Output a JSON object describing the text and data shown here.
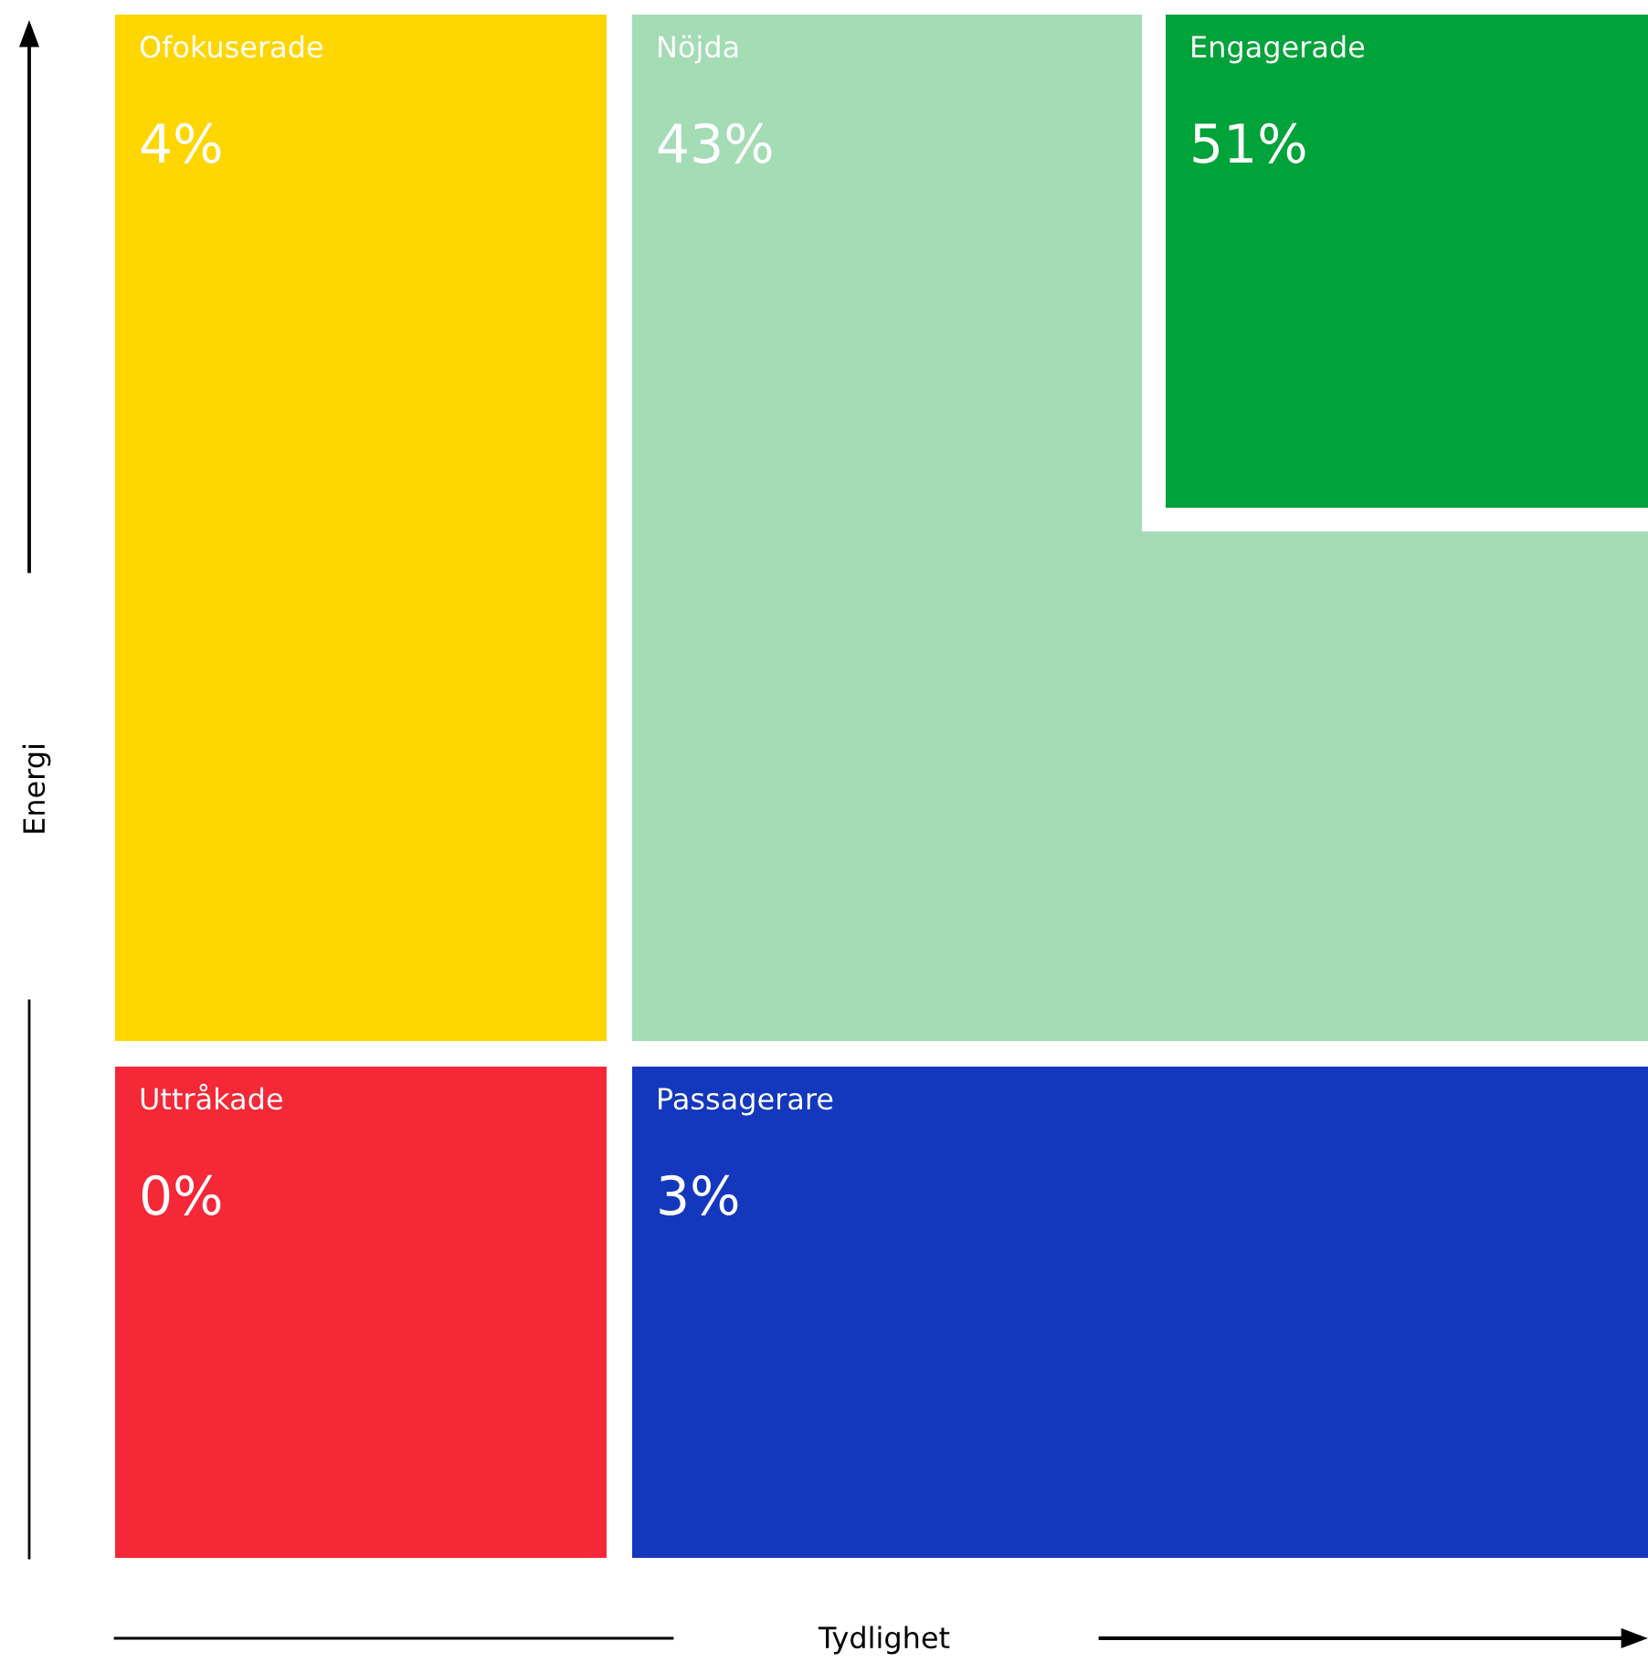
{
  "chart_data": {
    "type": "other",
    "xlabel": "Tydlighet",
    "ylabel": "Energi",
    "categories": [
      "Ofokuserade",
      "Nöjda",
      "Engagerade",
      "Uttråkade",
      "Passagerare"
    ],
    "values": [
      4,
      43,
      51,
      0,
      3
    ],
    "value_labels": [
      "4%",
      "43%",
      "51%",
      "0%",
      "3%"
    ],
    "colors": [
      "#ffd600",
      "#a3dcb5",
      "#00a23a",
      "#f42837",
      "#1438bd"
    ]
  }
}
